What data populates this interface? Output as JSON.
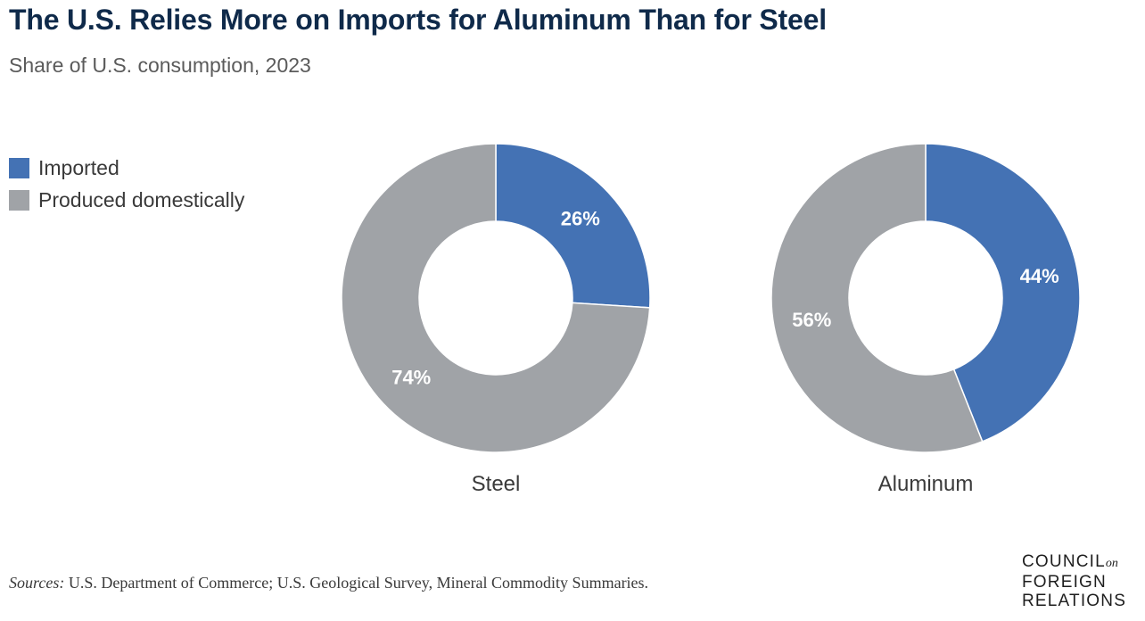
{
  "header": {
    "title": "The U.S. Relies More on Imports for Aluminum Than for Steel",
    "subtitle": "Share of U.S. consumption, 2023"
  },
  "legend": {
    "items": [
      {
        "label": "Imported",
        "color": "#4472b4"
      },
      {
        "label": "Produced domestically",
        "color": "#a0a3a7"
      }
    ]
  },
  "chart_data": [
    {
      "type": "pie",
      "variant": "donut",
      "title": "Steel",
      "categories": [
        "Imported",
        "Produced domestically"
      ],
      "values": [
        26,
        74
      ],
      "value_labels": [
        "26%",
        "74%"
      ],
      "colors": [
        "#4472b4",
        "#a0a3a7"
      ]
    },
    {
      "type": "pie",
      "variant": "donut",
      "title": "Aluminum",
      "categories": [
        "Imported",
        "Produced domestically"
      ],
      "values": [
        44,
        56
      ],
      "value_labels": [
        "44%",
        "56%"
      ],
      "colors": [
        "#4472b4",
        "#a0a3a7"
      ]
    }
  ],
  "footer": {
    "source_label": "Sources:",
    "source_text": "U.S. Department of Commerce; U.S. Geological Survey, Mineral Commodity Summaries.",
    "logo": {
      "line1": "COUNCIL",
      "line1_suffix": "on",
      "line2": "FOREIGN",
      "line3": "RELATIONS"
    }
  }
}
